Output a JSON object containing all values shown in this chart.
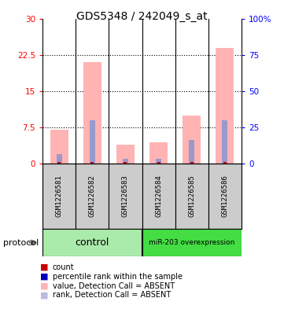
{
  "title": "GDS5348 / 242049_s_at",
  "samples": [
    "GSM1226581",
    "GSM1226582",
    "GSM1226583",
    "GSM1226584",
    "GSM1226585",
    "GSM1226586"
  ],
  "pink_values": [
    7.0,
    21.0,
    4.0,
    4.5,
    10.0,
    24.0
  ],
  "blue_values": [
    2.0,
    9.0,
    1.0,
    1.0,
    5.0,
    9.0
  ],
  "ylim_left": [
    0,
    30
  ],
  "ylim_right": [
    0,
    100
  ],
  "yticks_left": [
    0,
    7.5,
    15,
    22.5,
    30
  ],
  "yticks_right": [
    0,
    25,
    50,
    75,
    100
  ],
  "ytick_labels_left": [
    "0",
    "7.5",
    "15",
    "22.5",
    "30"
  ],
  "ytick_labels_right": [
    "0",
    "25",
    "50",
    "75",
    "100%"
  ],
  "pink_color": "#FFB3B3",
  "blue_color": "#9999CC",
  "red_color": "#CC0000",
  "dark_blue_color": "#0000BB",
  "gray_color": "#CCCCCC",
  "control_label": "control",
  "overexp_label": "miR-203 overexpression",
  "control_color": "#AAEAAA",
  "overexp_color": "#44DD44",
  "protocol_label": "protocol",
  "legend_labels": [
    "count",
    "percentile rank within the sample",
    "value, Detection Call = ABSENT",
    "rank, Detection Call = ABSENT"
  ],
  "legend_colors": [
    "#CC0000",
    "#0000BB",
    "#FFB3B3",
    "#BBBBDD"
  ],
  "bar_width": 0.55,
  "title_fontsize": 10,
  "tick_fontsize": 7.5,
  "sample_fontsize": 6.5,
  "legend_fontsize": 7,
  "protocol_fontsize": 8
}
